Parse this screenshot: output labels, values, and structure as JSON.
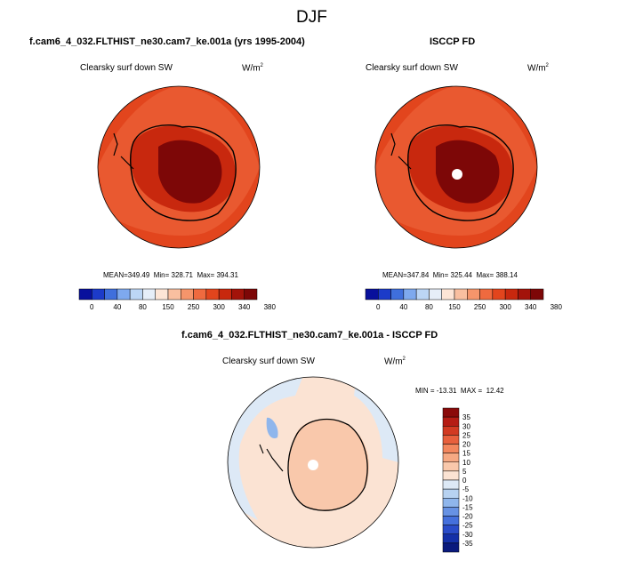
{
  "page": {
    "season": "DJF"
  },
  "chart_data": [
    {
      "type": "polar-contour-map",
      "panel": "model",
      "header": "f.cam6_4_032.FLTHIST_ne30.cam7_ke.001a (yrs 1995-2004)",
      "variable": "Clearsky surf down SW",
      "units_base": "W/m",
      "units_exp": "2",
      "stats": {
        "mean_label": "MEAN=",
        "mean": 349.49,
        "min_label": "Min=",
        "min": 328.71,
        "max_label": "Max=",
        "max": 394.31
      },
      "colorbar": {
        "levels": [
          0,
          40,
          80,
          150,
          250,
          300,
          340,
          380
        ],
        "colors": [
          "#08109c",
          "#1c3bc9",
          "#3f6fdc",
          "#7ea9ee",
          "#bcd6f5",
          "#e6eef8",
          "#fde5d6",
          "#f9bfa0",
          "#f5956b",
          "#ef6a3f",
          "#e2451d",
          "#c8280e",
          "#a3130a",
          "#7d0707"
        ]
      }
    },
    {
      "type": "polar-contour-map",
      "panel": "obs",
      "header": "ISCCP FD",
      "variable": "Clearsky surf down SW",
      "units_base": "W/m",
      "units_exp": "2",
      "stats": {
        "mean_label": "MEAN=",
        "mean": 347.84,
        "min_label": "Min=",
        "min": 325.44,
        "max_label": "Max=",
        "max": 388.14
      },
      "colorbar": {
        "levels": [
          0,
          40,
          80,
          150,
          250,
          300,
          340,
          380
        ],
        "colors": [
          "#08109c",
          "#1c3bc9",
          "#3f6fdc",
          "#7ea9ee",
          "#bcd6f5",
          "#e6eef8",
          "#fde5d6",
          "#f9bfa0",
          "#f5956b",
          "#ef6a3f",
          "#e2451d",
          "#c8280e",
          "#a3130a",
          "#7d0707"
        ]
      }
    },
    {
      "type": "polar-contour-map",
      "panel": "difference",
      "header": "f.cam6_4_032.FLTHIST_ne30.cam7_ke.001a - ISCCP FD",
      "variable": "Clearsky surf down SW",
      "units_base": "W/m",
      "units_exp": "2",
      "stats_text": "MIN = -13.31  MAX =  12.42",
      "colorbar": {
        "levels": [
          35,
          30,
          25,
          20,
          15,
          10,
          5,
          0,
          -5,
          -10,
          -15,
          -20,
          -25,
          -30,
          -35
        ],
        "colors": [
          "#8a0a0a",
          "#b51c14",
          "#d23a22",
          "#e8603d",
          "#f3875e",
          "#f6a983",
          "#f9c8ab",
          "#fbe3d3",
          "#dde9f6",
          "#b7d2f1",
          "#8fb6ec",
          "#6792e4",
          "#4570dc",
          "#2a4cc9",
          "#1430a8",
          "#0a1a7d"
        ]
      }
    }
  ]
}
